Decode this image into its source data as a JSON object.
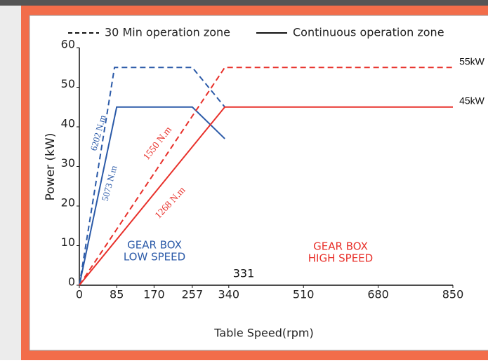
{
  "chart_data": {
    "type": "line",
    "xlabel": "Table Speed(rpm)",
    "ylabel": "Power (kW)",
    "xlim": [
      0,
      850
    ],
    "xticks": [
      0,
      85,
      170,
      257,
      340,
      510,
      680,
      850
    ],
    "ylim": [
      0,
      60
    ],
    "yticks": [
      0,
      10,
      20,
      30,
      40,
      50,
      60
    ],
    "legend": [
      {
        "label": "30 Min operation zone",
        "style": "dashed"
      },
      {
        "label": "Continuous operation zone",
        "style": "solid"
      }
    ],
    "series": [
      {
        "color": "#2b5aa8",
        "style": "dashed",
        "x": [
          0,
          80,
          257,
          331
        ],
        "values": [
          0,
          55,
          55,
          45
        ]
      },
      {
        "color": "#2b5aa8",
        "style": "solid",
        "x": [
          0,
          85,
          257,
          331
        ],
        "values": [
          0,
          45,
          45,
          37
        ]
      },
      {
        "color": "#e8302a",
        "style": "dashed",
        "x": [
          0,
          331,
          850
        ],
        "values": [
          0,
          55,
          55
        ]
      },
      {
        "color": "#e8302a",
        "style": "solid",
        "x": [
          0,
          331,
          850
        ],
        "values": [
          0,
          45,
          45
        ]
      }
    ],
    "annotations": [
      {
        "text": "6202 N.m",
        "color": "#2b5aa8"
      },
      {
        "text": "5073 N.m",
        "color": "#2b5aa8"
      },
      {
        "text": "1550 N.m",
        "color": "#e8302a"
      },
      {
        "text": "1268 N.m",
        "color": "#e8302a"
      },
      {
        "text": "GEAR BOX",
        "color": "#2b5aa8"
      },
      {
        "text": "LOW SPEED",
        "color": "#2b5aa8"
      },
      {
        "text": "GEAR BOX",
        "color": "#e8302a"
      },
      {
        "text": "HIGH SPEED",
        "color": "#e8302a"
      },
      {
        "text": "331",
        "color": "#111111"
      },
      {
        "text": "55kW",
        "color": "#111111"
      },
      {
        "text": "45kW",
        "color": "#111111"
      }
    ]
  }
}
